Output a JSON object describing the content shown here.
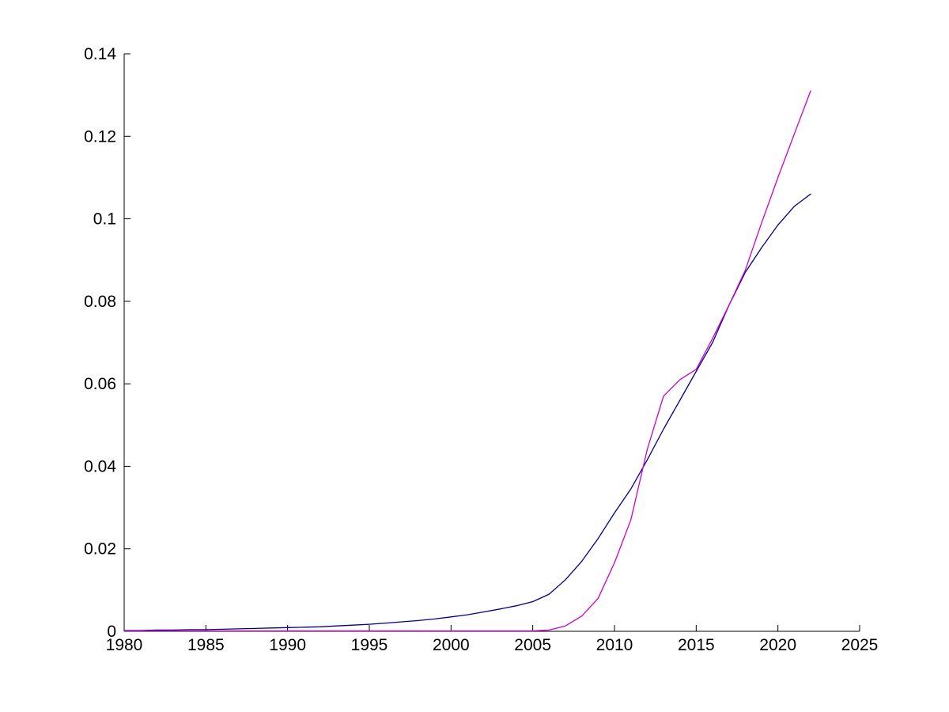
{
  "chart_data": {
    "type": "line",
    "title": "",
    "xlabel": "",
    "ylabel": "",
    "xlim": [
      1980,
      2025
    ],
    "ylim": [
      0,
      0.14
    ],
    "grid": false,
    "legend": "none",
    "background_color": "#FFFFFF",
    "axis_color": "#000000",
    "x_ticks": [
      1980,
      1985,
      1990,
      1995,
      2000,
      2005,
      2010,
      2015,
      2020,
      2025
    ],
    "x_tick_labels": [
      "1980",
      "1985",
      "1990",
      "1995",
      "2000",
      "2005",
      "2010",
      "2015",
      "2020",
      "2025"
    ],
    "y_ticks": [
      0,
      0.02,
      0.04,
      0.06,
      0.08,
      0.1,
      0.12,
      0.14
    ],
    "y_tick_labels": [
      "0",
      "0.02",
      "0.04",
      "0.06",
      "0.08",
      "0.1",
      "0.12",
      "0.14"
    ],
    "x": [
      1980,
      1981,
      1982,
      1983,
      1984,
      1985,
      1986,
      1987,
      1988,
      1989,
      1990,
      1991,
      1992,
      1993,
      1994,
      1995,
      1996,
      1997,
      1998,
      1999,
      2000,
      2001,
      2002,
      2003,
      2004,
      2005,
      2006,
      2007,
      2008,
      2009,
      2010,
      2011,
      2012,
      2013,
      2014,
      2015,
      2016,
      2017,
      2018,
      2019,
      2020,
      2021,
      2022
    ],
    "series": [
      {
        "name": "blue-smooth-curve",
        "color": "#00008B",
        "values": [
          0.0002,
          0.0002,
          0.0003,
          0.0003,
          0.0004,
          0.0004,
          0.0005,
          0.0006,
          0.0007,
          0.0008,
          0.0009,
          0.001,
          0.0011,
          0.0013,
          0.0015,
          0.0017,
          0.002,
          0.0023,
          0.0026,
          0.003,
          0.0035,
          0.004,
          0.0047,
          0.0054,
          0.0062,
          0.0072,
          0.009,
          0.0125,
          0.017,
          0.0225,
          0.0287,
          0.0345,
          0.0415,
          0.049,
          0.056,
          0.063,
          0.07,
          0.079,
          0.087,
          0.093,
          0.0985,
          0.103,
          0.106
        ]
      },
      {
        "name": "magenta-curve",
        "color": "#CC00CC",
        "values": [
          0.0001,
          0.0001,
          0.0001,
          0.0001,
          0.0001,
          0.0001,
          0.0001,
          0.0001,
          0.0001,
          0.0001,
          0.0001,
          0.0001,
          0.0001,
          0.0001,
          0.0001,
          0.0001,
          0.0001,
          0.0001,
          0.0001,
          0.0001,
          0.0001,
          0.0001,
          0.0001,
          0.0001,
          0.0001,
          0.0001,
          0.0003,
          0.0013,
          0.0037,
          0.008,
          0.0166,
          0.027,
          0.044,
          0.057,
          0.061,
          0.0635,
          0.071,
          0.079,
          0.0875,
          0.099,
          0.11,
          0.1205,
          0.131
        ]
      }
    ]
  }
}
